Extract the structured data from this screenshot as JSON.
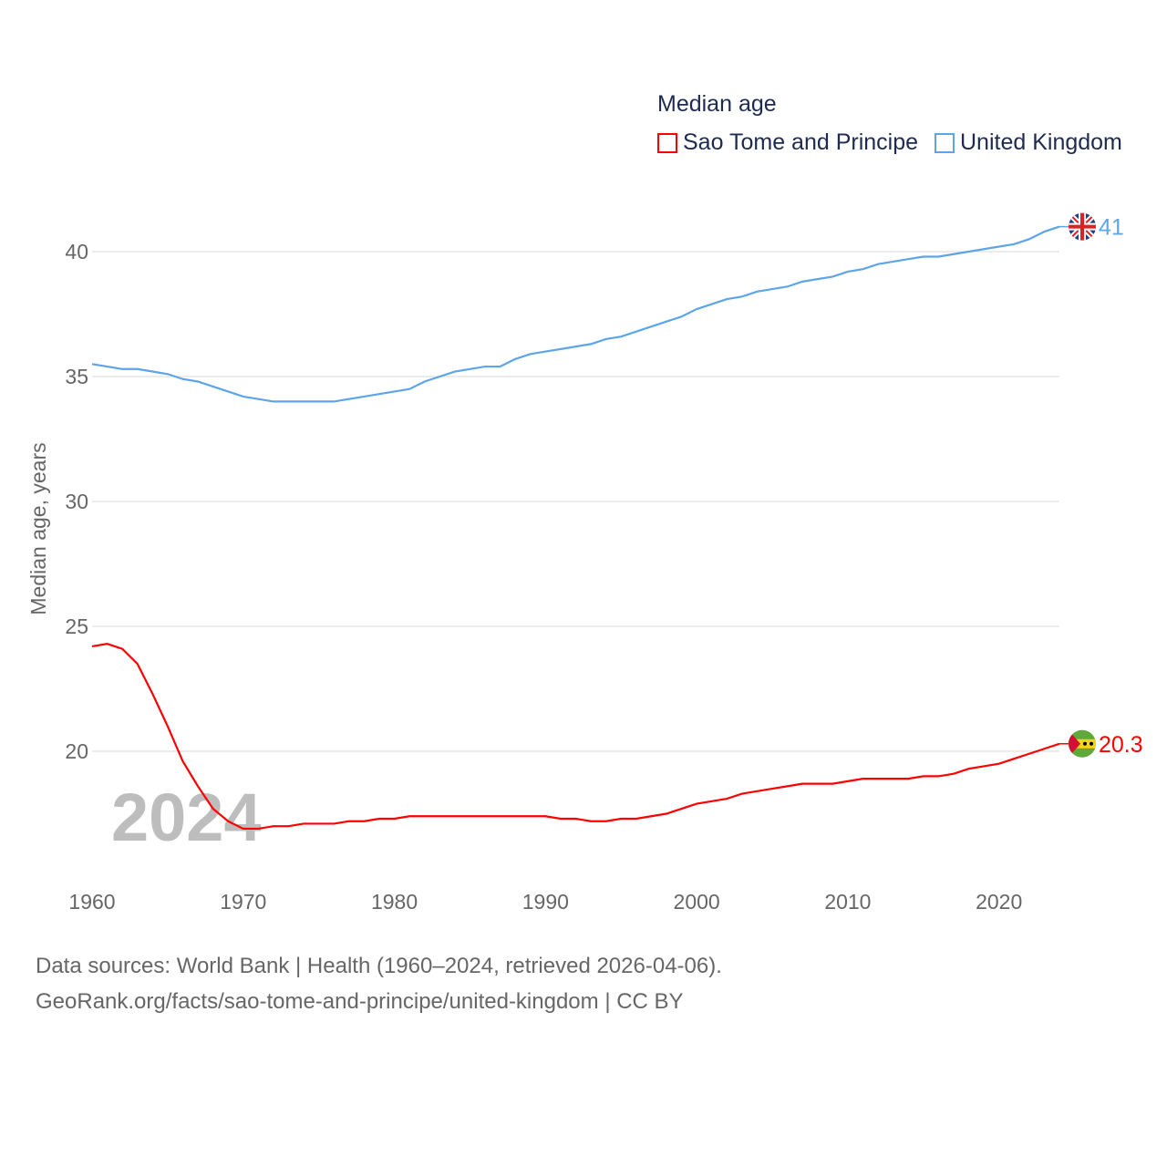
{
  "chart_data": {
    "type": "line",
    "title": "Median age",
    "ylabel": "Median age, years",
    "xlabel": "",
    "xlim": [
      1960,
      2024
    ],
    "ylim": [
      15,
      42
    ],
    "yticks": [
      20,
      25,
      30,
      35,
      40
    ],
    "xticks": [
      1960,
      1970,
      1980,
      1990,
      2000,
      2010,
      2020
    ],
    "grid": true,
    "legend_position": "top-right",
    "year_label": "2024",
    "x": [
      1960,
      1961,
      1962,
      1963,
      1964,
      1965,
      1966,
      1967,
      1968,
      1969,
      1970,
      1971,
      1972,
      1973,
      1974,
      1975,
      1976,
      1977,
      1978,
      1979,
      1980,
      1981,
      1982,
      1983,
      1984,
      1985,
      1986,
      1987,
      1988,
      1989,
      1990,
      1991,
      1992,
      1993,
      1994,
      1995,
      1996,
      1997,
      1998,
      1999,
      2000,
      2001,
      2002,
      2003,
      2004,
      2005,
      2006,
      2007,
      2008,
      2009,
      2010,
      2011,
      2012,
      2013,
      2014,
      2015,
      2016,
      2017,
      2018,
      2019,
      2020,
      2021,
      2022,
      2023,
      2024
    ],
    "series": [
      {
        "name": "Sao Tome and Principe",
        "color": "#ff0000",
        "end_label": "20.3",
        "values": [
          24.2,
          24.3,
          24.1,
          23.5,
          22.3,
          21.0,
          19.6,
          18.6,
          17.7,
          17.2,
          16.9,
          16.9,
          17.0,
          17.0,
          17.1,
          17.1,
          17.1,
          17.2,
          17.2,
          17.3,
          17.3,
          17.4,
          17.4,
          17.4,
          17.4,
          17.4,
          17.4,
          17.4,
          17.4,
          17.4,
          17.4,
          17.3,
          17.3,
          17.2,
          17.2,
          17.3,
          17.3,
          17.4,
          17.5,
          17.7,
          17.9,
          18.0,
          18.1,
          18.3,
          18.4,
          18.5,
          18.6,
          18.7,
          18.7,
          18.7,
          18.8,
          18.9,
          18.9,
          18.9,
          18.9,
          19.0,
          19.0,
          19.1,
          19.3,
          19.4,
          19.5,
          19.7,
          19.9,
          20.1,
          20.3
        ]
      },
      {
        "name": "United Kingdom",
        "color": "#5da5e8",
        "end_label": "41",
        "values": [
          35.5,
          35.4,
          35.3,
          35.3,
          35.2,
          35.1,
          34.9,
          34.8,
          34.6,
          34.4,
          34.2,
          34.1,
          34.0,
          34.0,
          34.0,
          34.0,
          34.0,
          34.1,
          34.2,
          34.3,
          34.4,
          34.5,
          34.8,
          35.0,
          35.2,
          35.3,
          35.4,
          35.4,
          35.7,
          35.9,
          36.0,
          36.1,
          36.2,
          36.3,
          36.5,
          36.6,
          36.8,
          37.0,
          37.2,
          37.4,
          37.7,
          37.9,
          38.1,
          38.2,
          38.4,
          38.5,
          38.6,
          38.8,
          38.9,
          39.0,
          39.2,
          39.3,
          39.5,
          39.6,
          39.7,
          39.8,
          39.8,
          39.9,
          40.0,
          40.1,
          40.2,
          40.3,
          40.5,
          40.8,
          41.0
        ]
      }
    ]
  },
  "footer": {
    "line1": "Data sources: World Bank | Health (1960–2024, retrieved 2026-04-06).",
    "line2": "GeoRank.org/facts/sao-tome-and-principe/united-kingdom | CC BY"
  }
}
